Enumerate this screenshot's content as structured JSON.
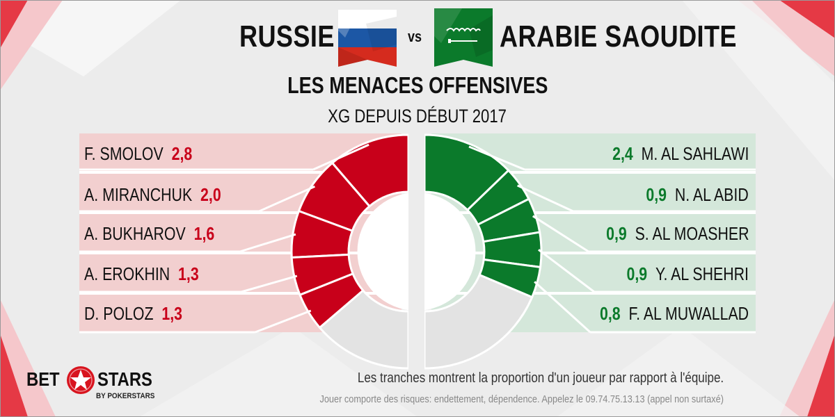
{
  "header": {
    "team_left": "RUSSIE",
    "vs": "vs",
    "team_right": "ARABIE SAOUDITE",
    "title": "LES MENACES OFFENSIVES",
    "subtitle": "XG DEPUIS DÉBUT 2017"
  },
  "colors": {
    "red": "#c8001a",
    "red_panel": "#f2cfcf",
    "green": "#0b7a2b",
    "green_panel": "#d4e7da",
    "grey_slice": "#e3e3e3"
  },
  "chart_data": {
    "type": "pie",
    "subtype": "split-donut",
    "title": "LES MENACES OFFENSIVES",
    "subtitle": "XG DEPUIS DÉBUT 2017",
    "series": [
      {
        "name": "RUSSIE",
        "side": "left",
        "color": "#c8001a",
        "players": [
          {
            "name": "F. SMOLOV",
            "value": 2.8,
            "label": "2,8"
          },
          {
            "name": "A. MIRANCHUK",
            "value": 2.0,
            "label": "2,0"
          },
          {
            "name": "A. BUKHAROV",
            "value": 1.6,
            "label": "1,6"
          },
          {
            "name": "A. EROKHIN",
            "value": 1.3,
            "label": "1,3"
          },
          {
            "name": "D. POLOZ",
            "value": 1.3,
            "label": "1,3"
          }
        ],
        "others": 3.4
      },
      {
        "name": "ARABIE SAOUDITE",
        "side": "right",
        "color": "#0b7a2b",
        "players": [
          {
            "name": "M. AL SAHLAWI",
            "value": 2.4,
            "label": "2,4"
          },
          {
            "name": "N. AL ABID",
            "value": 0.9,
            "label": "0,9"
          },
          {
            "name": "S. AL MOASHER",
            "value": 0.9,
            "label": "0,9"
          },
          {
            "name": "Y. AL SHEHRI",
            "value": 0.9,
            "label": "0,9"
          },
          {
            "name": "F. AL MUWALLAD",
            "value": 0.8,
            "label": "0,8"
          }
        ],
        "others": 3.5
      }
    ]
  },
  "footer": {
    "logo_bet": "BET",
    "logo_stars": "STARS",
    "logo_sub": "BY POKERSTARS",
    "note": "Les tranches montrent la proportion d'un joueur par rapport à l'équipe.",
    "legal": "Jouer comporte des risques: endettement, dépendence. Appelez le 09.74.75.13.13 (appel non surtaxé)"
  }
}
